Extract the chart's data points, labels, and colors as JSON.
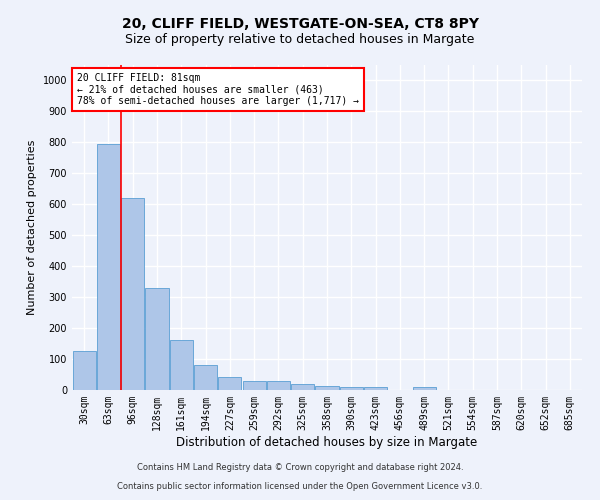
{
  "title1": "20, CLIFF FIELD, WESTGATE-ON-SEA, CT8 8PY",
  "title2": "Size of property relative to detached houses in Margate",
  "xlabel": "Distribution of detached houses by size in Margate",
  "ylabel": "Number of detached properties",
  "categories": [
    "30sqm",
    "63sqm",
    "96sqm",
    "128sqm",
    "161sqm",
    "194sqm",
    "227sqm",
    "259sqm",
    "292sqm",
    "325sqm",
    "358sqm",
    "390sqm",
    "423sqm",
    "456sqm",
    "489sqm",
    "521sqm",
    "554sqm",
    "587sqm",
    "620sqm",
    "652sqm",
    "685sqm"
  ],
  "values": [
    125,
    795,
    620,
    330,
    163,
    80,
    42,
    30,
    28,
    18,
    12,
    10,
    10,
    0,
    10,
    0,
    0,
    0,
    0,
    0,
    0
  ],
  "bar_color": "#aec6e8",
  "bar_edge_color": "#5a9fd4",
  "red_line_x": 1.5,
  "annotation_title": "20 CLIFF FIELD: 81sqm",
  "annotation_line1": "← 21% of detached houses are smaller (463)",
  "annotation_line2": "78% of semi-detached houses are larger (1,717) →",
  "ylim": [
    0,
    1050
  ],
  "yticks": [
    0,
    100,
    200,
    300,
    400,
    500,
    600,
    700,
    800,
    900,
    1000
  ],
  "footnote1": "Contains HM Land Registry data © Crown copyright and database right 2024.",
  "footnote2": "Contains public sector information licensed under the Open Government Licence v3.0.",
  "background_color": "#eef2fb",
  "grid_color": "#ffffff",
  "title_fontsize": 10,
  "subtitle_fontsize": 9,
  "axis_label_fontsize": 8,
  "tick_fontsize": 7
}
